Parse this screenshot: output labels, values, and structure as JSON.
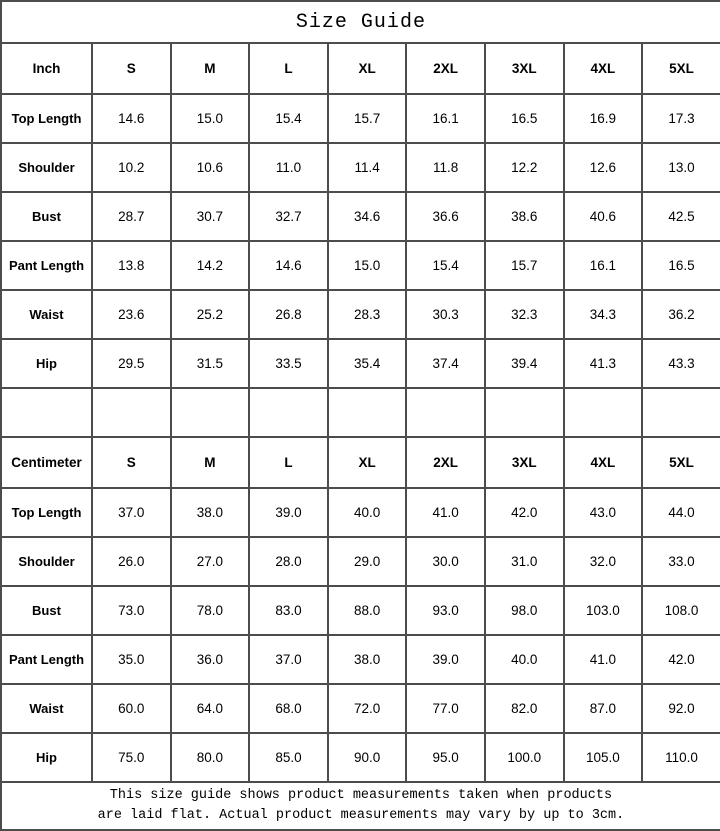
{
  "title": "Size Guide",
  "table": {
    "sections": [
      {
        "unit": "Inch",
        "sizes": [
          "S",
          "M",
          "L",
          "XL",
          "2XL",
          "3XL",
          "4XL",
          "5XL"
        ],
        "rows": [
          {
            "label": "Top Length",
            "values": [
              "14.6",
              "15.0",
              "15.4",
              "15.7",
              "16.1",
              "16.5",
              "16.9",
              "17.3"
            ]
          },
          {
            "label": "Shoulder",
            "values": [
              "10.2",
              "10.6",
              "11.0",
              "11.4",
              "11.8",
              "12.2",
              "12.6",
              "13.0"
            ]
          },
          {
            "label": "Bust",
            "values": [
              "28.7",
              "30.7",
              "32.7",
              "34.6",
              "36.6",
              "38.6",
              "40.6",
              "42.5"
            ]
          },
          {
            "label": "Pant Length",
            "values": [
              "13.8",
              "14.2",
              "14.6",
              "15.0",
              "15.4",
              "15.7",
              "16.1",
              "16.5"
            ]
          },
          {
            "label": "Waist",
            "values": [
              "23.6",
              "25.2",
              "26.8",
              "28.3",
              "30.3",
              "32.3",
              "34.3",
              "36.2"
            ]
          },
          {
            "label": "Hip",
            "values": [
              "29.5",
              "31.5",
              "33.5",
              "35.4",
              "37.4",
              "39.4",
              "41.3",
              "43.3"
            ]
          }
        ]
      },
      {
        "unit": "Centimeter",
        "sizes": [
          "S",
          "M",
          "L",
          "XL",
          "2XL",
          "3XL",
          "4XL",
          "5XL"
        ],
        "rows": [
          {
            "label": "Top Length",
            "values": [
              "37.0",
              "38.0",
              "39.0",
              "40.0",
              "41.0",
              "42.0",
              "43.0",
              "44.0"
            ]
          },
          {
            "label": "Shoulder",
            "values": [
              "26.0",
              "27.0",
              "28.0",
              "29.0",
              "30.0",
              "31.0",
              "32.0",
              "33.0"
            ]
          },
          {
            "label": "Bust",
            "values": [
              "73.0",
              "78.0",
              "83.0",
              "88.0",
              "93.0",
              "98.0",
              "103.0",
              "108.0"
            ]
          },
          {
            "label": "Pant Length",
            "values": [
              "35.0",
              "36.0",
              "37.0",
              "38.0",
              "39.0",
              "40.0",
              "41.0",
              "42.0"
            ]
          },
          {
            "label": "Waist",
            "values": [
              "60.0",
              "64.0",
              "68.0",
              "72.0",
              "77.0",
              "82.0",
              "87.0",
              "92.0"
            ]
          },
          {
            "label": "Hip",
            "values": [
              "75.0",
              "80.0",
              "85.0",
              "90.0",
              "95.0",
              "100.0",
              "105.0",
              "110.0"
            ]
          }
        ]
      }
    ]
  },
  "note": {
    "line1": "This size guide shows product measurements taken when products",
    "line2": "are laid flat. Actual product measurements may vary by up to 3cm."
  },
  "colors": {
    "background": "#ffffff",
    "text": "#000000",
    "border": "#4c4c4c"
  }
}
